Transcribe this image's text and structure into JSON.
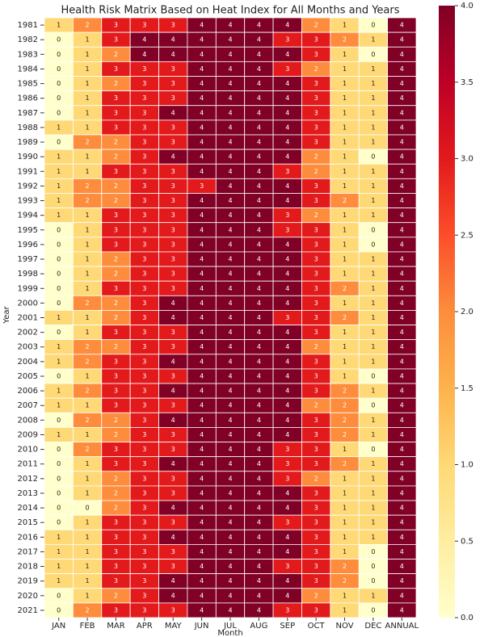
{
  "chart_data": {
    "type": "heatmap",
    "title": "Health Risk Matrix Based on Heat Index for All Months and Years",
    "xlabel": "Month",
    "ylabel": "Year",
    "x": [
      "JAN",
      "FEB",
      "MAR",
      "APR",
      "MAY",
      "JUN",
      "JUL",
      "AUG",
      "SEP",
      "OCT",
      "NOV",
      "DEC",
      "ANNUAL"
    ],
    "y": [
      "1981",
      "1982",
      "1983",
      "1984",
      "1985",
      "1986",
      "1987",
      "1988",
      "1989",
      "1990",
      "1991",
      "1992",
      "1993",
      "1994",
      "1995",
      "1996",
      "1997",
      "1998",
      "1999",
      "2000",
      "2001",
      "2002",
      "2003",
      "2004",
      "2005",
      "2006",
      "2007",
      "2008",
      "2009",
      "2010",
      "2011",
      "2012",
      "2013",
      "2014",
      "2015",
      "2016",
      "2017",
      "2018",
      "2019",
      "2020",
      "2021"
    ],
    "values": [
      [
        1,
        2,
        3,
        3,
        3,
        4,
        4,
        4,
        4,
        2,
        1,
        0,
        4
      ],
      [
        0,
        1,
        3,
        4,
        4,
        4,
        4,
        4,
        3,
        3,
        2,
        1,
        4
      ],
      [
        0,
        1,
        2,
        4,
        4,
        4,
        4,
        4,
        4,
        3,
        1,
        0,
        4
      ],
      [
        0,
        1,
        3,
        3,
        3,
        4,
        4,
        4,
        3,
        2,
        1,
        1,
        4
      ],
      [
        0,
        1,
        2,
        3,
        3,
        4,
        4,
        4,
        4,
        3,
        1,
        1,
        4
      ],
      [
        0,
        1,
        3,
        3,
        3,
        4,
        4,
        4,
        4,
        3,
        1,
        1,
        4
      ],
      [
        0,
        1,
        3,
        3,
        4,
        4,
        4,
        4,
        4,
        3,
        1,
        1,
        4
      ],
      [
        1,
        1,
        3,
        3,
        3,
        4,
        4,
        4,
        4,
        3,
        1,
        1,
        4
      ],
      [
        0,
        2,
        2,
        3,
        3,
        4,
        4,
        4,
        4,
        3,
        1,
        1,
        4
      ],
      [
        1,
        1,
        2,
        3,
        4,
        4,
        4,
        4,
        4,
        2,
        1,
        0,
        4
      ],
      [
        1,
        1,
        3,
        3,
        3,
        4,
        4,
        4,
        3,
        2,
        1,
        1,
        4
      ],
      [
        1,
        2,
        2,
        3,
        3,
        3,
        4,
        4,
        4,
        3,
        1,
        1,
        4
      ],
      [
        1,
        2,
        2,
        3,
        3,
        4,
        4,
        4,
        4,
        3,
        2,
        1,
        4
      ],
      [
        1,
        1,
        3,
        3,
        3,
        4,
        4,
        4,
        3,
        2,
        1,
        1,
        4
      ],
      [
        0,
        1,
        3,
        3,
        3,
        4,
        4,
        4,
        3,
        3,
        1,
        0,
        4
      ],
      [
        0,
        1,
        3,
        3,
        3,
        4,
        4,
        4,
        4,
        3,
        1,
        0,
        4
      ],
      [
        0,
        1,
        2,
        3,
        3,
        4,
        4,
        4,
        4,
        3,
        1,
        1,
        4
      ],
      [
        0,
        1,
        2,
        3,
        3,
        4,
        4,
        4,
        4,
        3,
        1,
        1,
        4
      ],
      [
        0,
        1,
        3,
        3,
        3,
        4,
        4,
        4,
        4,
        3,
        2,
        1,
        4
      ],
      [
        0,
        2,
        2,
        3,
        4,
        4,
        4,
        4,
        4,
        3,
        1,
        1,
        4
      ],
      [
        1,
        1,
        2,
        3,
        4,
        4,
        4,
        4,
        3,
        3,
        2,
        1,
        4
      ],
      [
        0,
        1,
        3,
        3,
        3,
        4,
        4,
        4,
        4,
        3,
        1,
        1,
        4
      ],
      [
        1,
        2,
        2,
        3,
        3,
        4,
        4,
        4,
        4,
        2,
        1,
        1,
        4
      ],
      [
        1,
        2,
        3,
        3,
        4,
        4,
        4,
        4,
        4,
        3,
        1,
        1,
        4
      ],
      [
        0,
        1,
        3,
        3,
        3,
        4,
        4,
        4,
        4,
        3,
        1,
        0,
        4
      ],
      [
        1,
        2,
        3,
        3,
        4,
        4,
        4,
        4,
        4,
        3,
        2,
        1,
        4
      ],
      [
        1,
        1,
        3,
        3,
        3,
        4,
        4,
        4,
        4,
        2,
        2,
        0,
        4
      ],
      [
        0,
        2,
        2,
        3,
        4,
        4,
        4,
        4,
        4,
        3,
        2,
        1,
        4
      ],
      [
        1,
        1,
        2,
        3,
        3,
        4,
        4,
        4,
        4,
        3,
        2,
        1,
        4
      ],
      [
        0,
        2,
        3,
        3,
        3,
        4,
        4,
        4,
        3,
        3,
        1,
        0,
        4
      ],
      [
        0,
        1,
        3,
        3,
        4,
        4,
        4,
        4,
        3,
        3,
        2,
        1,
        4
      ],
      [
        0,
        1,
        2,
        3,
        3,
        4,
        4,
        4,
        3,
        2,
        1,
        1,
        4
      ],
      [
        0,
        1,
        2,
        3,
        3,
        4,
        4,
        4,
        4,
        3,
        1,
        1,
        4
      ],
      [
        0,
        0,
        2,
        3,
        4,
        4,
        4,
        4,
        4,
        3,
        1,
        1,
        4
      ],
      [
        0,
        1,
        3,
        3,
        3,
        4,
        4,
        4,
        3,
        3,
        1,
        1,
        4
      ],
      [
        1,
        1,
        3,
        3,
        4,
        4,
        4,
        4,
        4,
        3,
        1,
        1,
        4
      ],
      [
        1,
        1,
        3,
        3,
        3,
        4,
        4,
        4,
        4,
        3,
        1,
        0,
        4
      ],
      [
        1,
        1,
        3,
        3,
        3,
        4,
        4,
        4,
        3,
        3,
        2,
        0,
        4
      ],
      [
        1,
        1,
        3,
        3,
        4,
        4,
        4,
        4,
        4,
        3,
        2,
        0,
        4
      ],
      [
        0,
        1,
        2,
        3,
        4,
        4,
        4,
        4,
        4,
        2,
        1,
        1,
        4
      ],
      [
        0,
        2,
        3,
        3,
        3,
        4,
        4,
        4,
        3,
        3,
        1,
        0,
        4
      ]
    ],
    "zlim": [
      0,
      4
    ],
    "zticks": [
      {
        "value": 0,
        "label": "0.0"
      },
      {
        "value": 0.5,
        "label": "0.5"
      },
      {
        "value": 1,
        "label": "1.0"
      },
      {
        "value": 1.5,
        "label": "1.5"
      },
      {
        "value": 2,
        "label": "2.0"
      },
      {
        "value": 2.5,
        "label": "2.5"
      },
      {
        "value": 3,
        "label": "3.0"
      },
      {
        "value": 3.5,
        "label": "3.5"
      },
      {
        "value": 4,
        "label": "4.0"
      }
    ],
    "colorscale": [
      "#ffffcc",
      "#ffeda0",
      "#fed976",
      "#feb24c",
      "#fd8d3c",
      "#fc4e2a",
      "#e31a1c",
      "#bd0026",
      "#800026"
    ]
  }
}
